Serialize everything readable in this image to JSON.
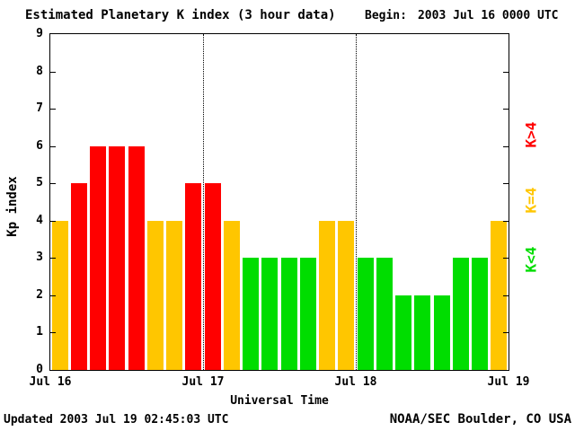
{
  "header": {
    "title": "Estimated Planetary K index (3 hour data)",
    "begin_label": "Begin:",
    "begin_value": "2003 Jul 16 0000 UTC"
  },
  "footer": {
    "updated": "Updated 2003 Jul 19 02:45:03 UTC",
    "source": "NOAA/SEC Boulder, CO USA"
  },
  "colors": {
    "k_gt_4": "#ff0000",
    "k_eq_4": "#ffc600",
    "k_lt_4": "#00dd00",
    "axis": "#000000",
    "background": "#ffffff"
  },
  "legend": [
    {
      "label": "K>4",
      "rule": "k_gt_4",
      "color": "#ff0000"
    },
    {
      "label": "K=4",
      "rule": "k_eq_4",
      "color": "#ffc600"
    },
    {
      "label": "K<4",
      "rule": "k_lt_4",
      "color": "#00dd00"
    }
  ],
  "chart_data": {
    "type": "bar",
    "title": "Estimated Planetary K index (3 hour data)",
    "xlabel": "Universal Time",
    "ylabel": "Kp index",
    "ylim": [
      0,
      9
    ],
    "y_ticks": [
      0,
      1,
      2,
      3,
      4,
      5,
      6,
      7,
      8,
      9
    ],
    "x_ticks": [
      "Jul 16",
      "Jul 17",
      "Jul 18",
      "Jul 19"
    ],
    "interval_hours": 3,
    "bars_per_day": 8,
    "days": [
      {
        "date": "Jul 16",
        "values": [
          4,
          5,
          6,
          6,
          6,
          4,
          4,
          5
        ]
      },
      {
        "date": "Jul 17",
        "values": [
          5,
          4,
          3,
          3,
          3,
          3,
          4,
          4
        ]
      },
      {
        "date": "Jul 18",
        "values": [
          3,
          3,
          2,
          2,
          2,
          3,
          3,
          4
        ]
      }
    ],
    "color_rule": "red if K>4, yellow if K=4, green if K<4",
    "grid": "dotted vertical lines at day boundaries",
    "legend_position": "right side, rotated 90deg"
  }
}
